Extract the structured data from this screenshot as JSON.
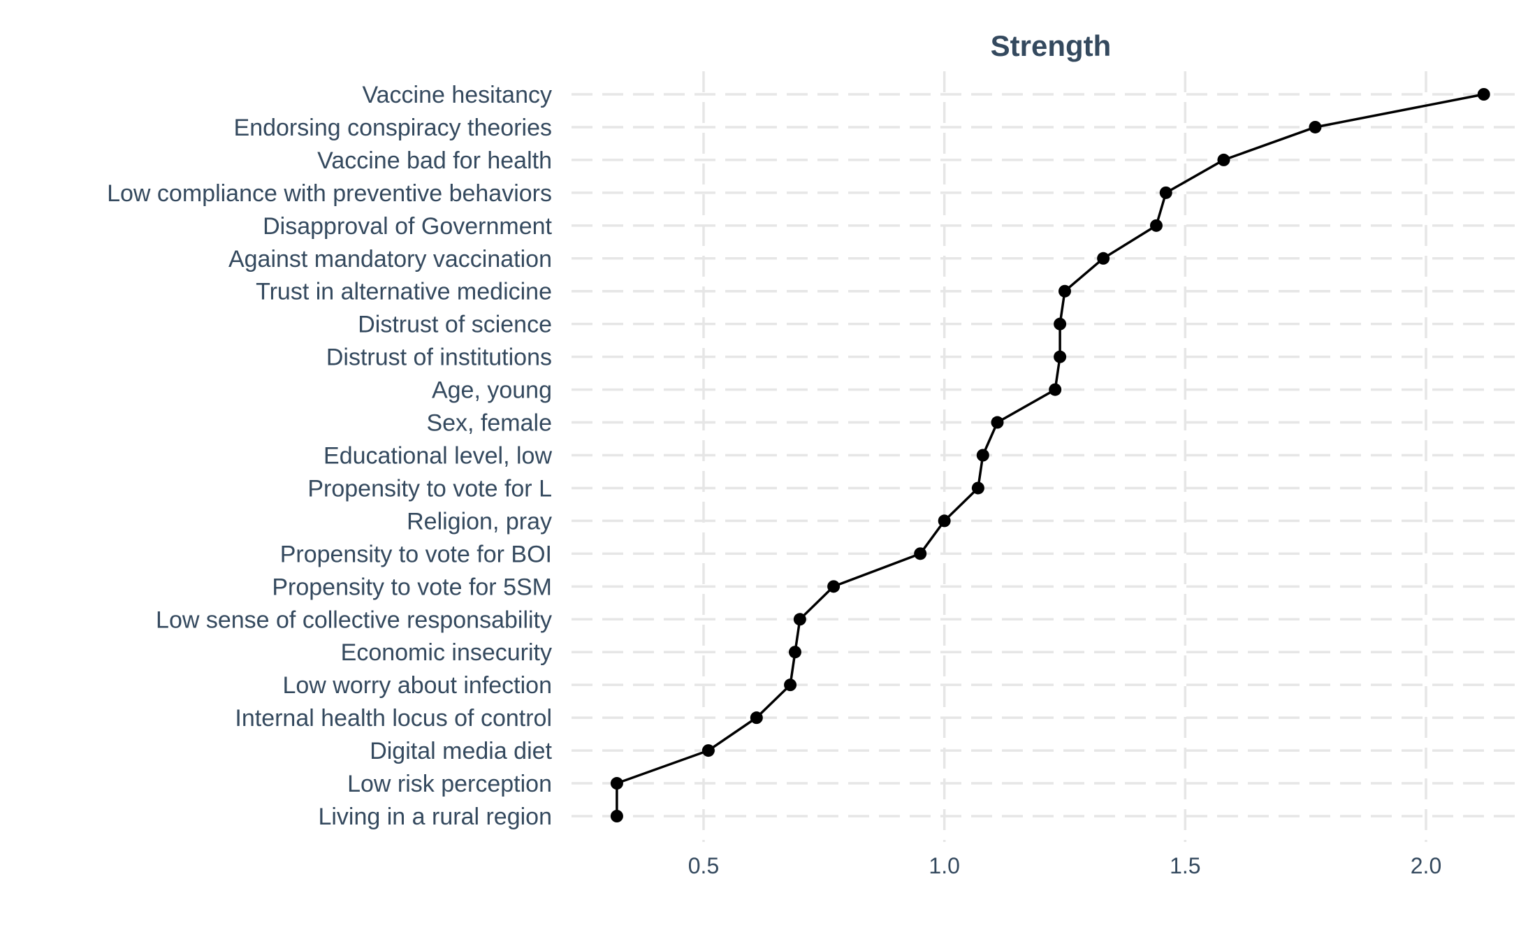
{
  "chart_data": {
    "type": "line",
    "title": "Strength",
    "xlabel": "",
    "ylabel": "",
    "xlim": [
      0.3,
      2.15
    ],
    "x_ticks": [
      0.5,
      1.0,
      1.5,
      2.0
    ],
    "x_tick_labels": [
      "0.5",
      "1.0",
      "1.5",
      "2.0"
    ],
    "grid": true,
    "grid_style": "dashed",
    "legend": "none",
    "colors": {
      "text": "#34495e",
      "grid": "#e6e6e6",
      "series": "#000000"
    },
    "categories": [
      "Vaccine hesitancy",
      "Endorsing conspiracy theories",
      "Vaccine bad for health",
      "Low compliance with preventive behaviors",
      "Disapproval of Government",
      "Against mandatory vaccination",
      "Trust in alternative medicine",
      "Distrust of science",
      "Distrust of institutions",
      "Age, young",
      "Sex, female",
      "Educational level, low",
      "Propensity to vote for L",
      "Religion, pray",
      "Propensity to vote for BOI",
      "Propensity to vote for 5SM",
      "Low sense of collective responsability",
      "Economic insecurity",
      "Low worry about infection",
      "Internal health locus of control",
      "Digital media diet",
      "Low risk perception",
      "Living in a rural region"
    ],
    "values": [
      2.12,
      1.77,
      1.58,
      1.46,
      1.44,
      1.33,
      1.25,
      1.24,
      1.24,
      1.23,
      1.11,
      1.08,
      1.07,
      1.0,
      0.95,
      0.77,
      0.7,
      0.69,
      0.68,
      0.61,
      0.51,
      0.32,
      0.32
    ]
  }
}
